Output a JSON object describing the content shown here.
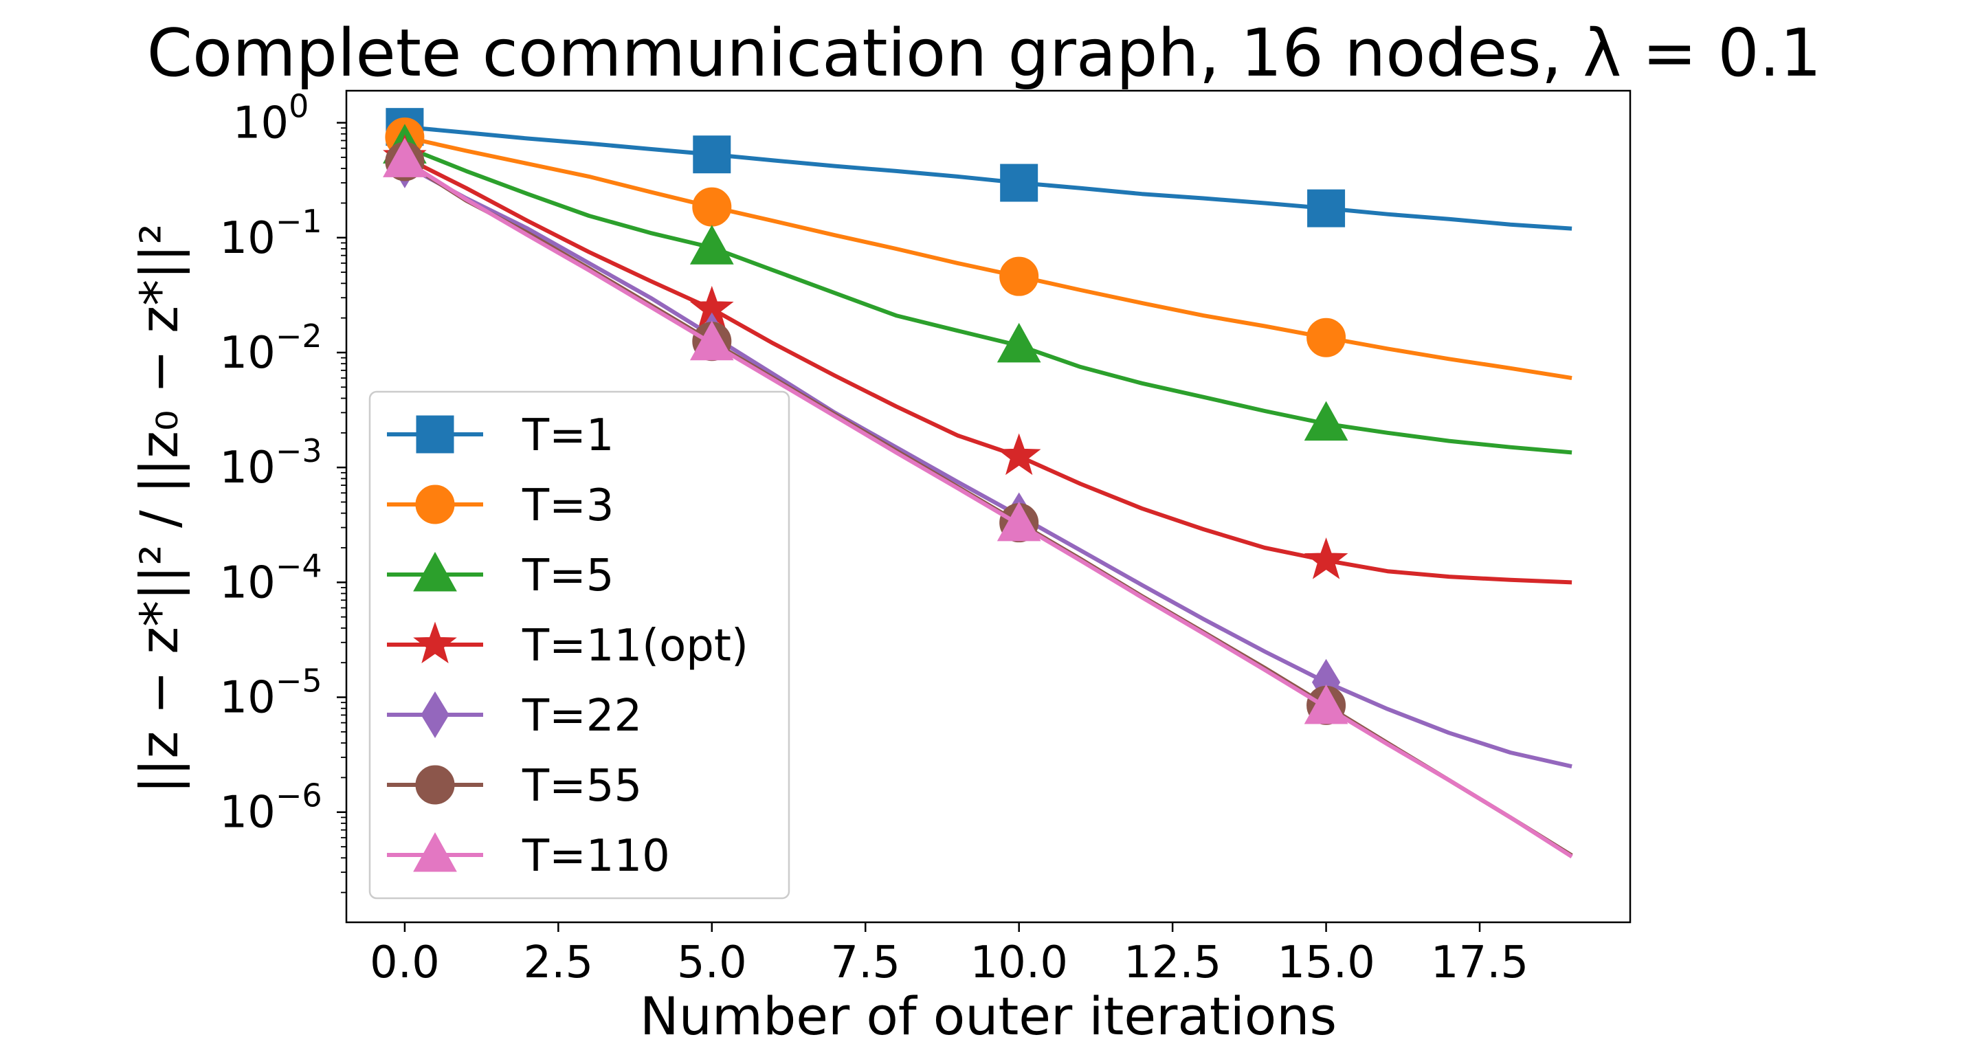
{
  "chart_data": {
    "type": "line",
    "title": "Complete communication graph, 16 nodes, λ = 0.1",
    "xlabel": "Number of outer iterations",
    "ylabel": "||z − z*||² / ||z₀ − z*||²",
    "yscale": "log",
    "xlim": [
      -0.95,
      19.95
    ],
    "ylim": [
      1.1e-07,
      1.9
    ],
    "x_ticks": [
      0.0,
      2.5,
      5.0,
      7.5,
      10.0,
      12.5,
      15.0,
      17.5
    ],
    "x_tick_labels": [
      "0.0",
      "2.5",
      "5.0",
      "7.5",
      "10.0",
      "12.5",
      "15.0",
      "17.5"
    ],
    "y_ticks": [
      {
        "value": 1,
        "base": "10",
        "exp": "0"
      },
      {
        "value": 0.1,
        "base": "10",
        "exp": "−1"
      },
      {
        "value": 0.01,
        "base": "10",
        "exp": "−2"
      },
      {
        "value": 0.001,
        "base": "10",
        "exp": "−3"
      },
      {
        "value": 0.0001,
        "base": "10",
        "exp": "−4"
      },
      {
        "value": 1e-05,
        "base": "10",
        "exp": "−5"
      },
      {
        "value": 1e-06,
        "base": "10",
        "exp": "−6"
      }
    ],
    "legend_position": "lower-left",
    "marker_every": 5,
    "x": [
      0,
      1,
      2,
      3,
      4,
      5,
      6,
      7,
      8,
      9,
      10,
      11,
      12,
      13,
      14,
      15,
      16,
      17,
      18,
      19
    ],
    "series": [
      {
        "name": "T=1",
        "color": "#1f77b4",
        "marker": "square",
        "values": [
          0.92,
          0.82,
          0.73,
          0.66,
          0.59,
          0.53,
          0.47,
          0.42,
          0.38,
          0.34,
          0.3,
          0.27,
          0.24,
          0.22,
          0.2,
          0.18,
          0.16,
          0.145,
          0.13,
          0.12
        ]
      },
      {
        "name": "T=3",
        "color": "#ff7f0e",
        "marker": "circle",
        "values": [
          0.75,
          0.57,
          0.44,
          0.34,
          0.25,
          0.185,
          0.14,
          0.105,
          0.08,
          0.06,
          0.046,
          0.035,
          0.027,
          0.021,
          0.017,
          0.0135,
          0.0108,
          0.0088,
          0.0073,
          0.006
        ]
      },
      {
        "name": "T=5",
        "color": "#2ca02c",
        "marker": "triangle",
        "values": [
          0.62,
          0.38,
          0.24,
          0.155,
          0.11,
          0.082,
          0.052,
          0.033,
          0.021,
          0.0155,
          0.0115,
          0.0075,
          0.0054,
          0.0041,
          0.0031,
          0.0024,
          0.002,
          0.0017,
          0.0015,
          0.00135
        ]
      },
      {
        "name": "T=11(opt)",
        "color": "#d62728",
        "marker": "star",
        "values": [
          0.5,
          0.27,
          0.14,
          0.075,
          0.042,
          0.024,
          0.012,
          0.0063,
          0.0034,
          0.0019,
          0.00125,
          0.00072,
          0.00044,
          0.00029,
          0.0002,
          0.000155,
          0.000125,
          0.000112,
          0.000105,
          0.0001
        ]
      },
      {
        "name": "T=22",
        "color": "#9467bd",
        "marker": "diamond",
        "values": [
          0.43,
          0.22,
          0.12,
          0.06,
          0.03,
          0.014,
          0.0065,
          0.003,
          0.0015,
          0.00075,
          0.00038,
          0.00019,
          9.5e-05,
          4.8e-05,
          2.5e-05,
          1.35e-05,
          7.9e-06,
          4.9e-06,
          3.3e-06,
          2.5e-06
        ]
      },
      {
        "name": "T=55",
        "color": "#8c564b",
        "marker": "circle",
        "values": [
          0.46,
          0.21,
          0.11,
          0.054,
          0.026,
          0.0125,
          0.006,
          0.0029,
          0.0014,
          0.00068,
          0.00033,
          0.00016,
          7.6e-05,
          3.7e-05,
          1.8e-05,
          8.5e-06,
          4e-06,
          1.9e-06,
          9e-07,
          4.2e-07
        ]
      },
      {
        "name": "T=110",
        "color": "#e377c2",
        "marker": "triangle",
        "values": [
          0.47,
          0.215,
          0.105,
          0.052,
          0.025,
          0.012,
          0.0058,
          0.0028,
          0.00135,
          0.00066,
          0.00032,
          0.000155,
          7.4e-05,
          3.6e-05,
          1.73e-05,
          8.2e-06,
          3.9e-06,
          1.9e-06,
          9e-07,
          4.1e-07
        ]
      }
    ]
  }
}
